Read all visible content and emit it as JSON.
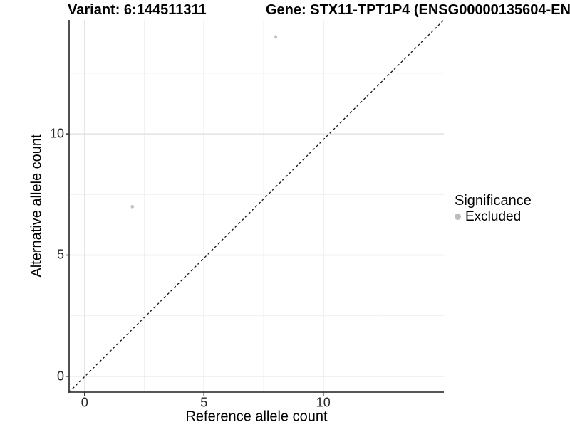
{
  "chart_data": {
    "type": "scatter",
    "titles": {
      "left": "Variant: 6:144511311",
      "right": "Gene: STX11-TPT1P4 (ENSG00000135604-EN"
    },
    "xlabel": "Reference allele count",
    "ylabel": "Alternative allele count",
    "xlim": [
      -0.65,
      15.05
    ],
    "ylim": [
      -0.65,
      14.7
    ],
    "x_ticks": [
      0,
      5,
      10
    ],
    "y_ticks": [
      0,
      5,
      10
    ],
    "x_minor_gridlines": [
      2.5,
      7.5,
      12.5
    ],
    "y_minor_gridlines": [
      2.5,
      7.5,
      12.5
    ],
    "grid": true,
    "reference_line": {
      "equation": "y = x",
      "style": "dashed",
      "color": "#141414"
    },
    "series": [
      {
        "name": "Excluded",
        "color": "#c3c3c3",
        "points": [
          {
            "x": 2,
            "y": 7
          },
          {
            "x": 8,
            "y": 14
          }
        ]
      }
    ],
    "legend_position": "right"
  },
  "legend": {
    "title": "Significance",
    "items": [
      {
        "label": "Excluded",
        "color": "#bdbdbd"
      }
    ]
  },
  "colors": {
    "major_grid": "#e3e3e3",
    "minor_grid": "#f1f1f1",
    "axis_line": "#3d3d3d",
    "tick_mark": "#333333",
    "point": "#c3c3c3",
    "background": "#ffffff"
  }
}
